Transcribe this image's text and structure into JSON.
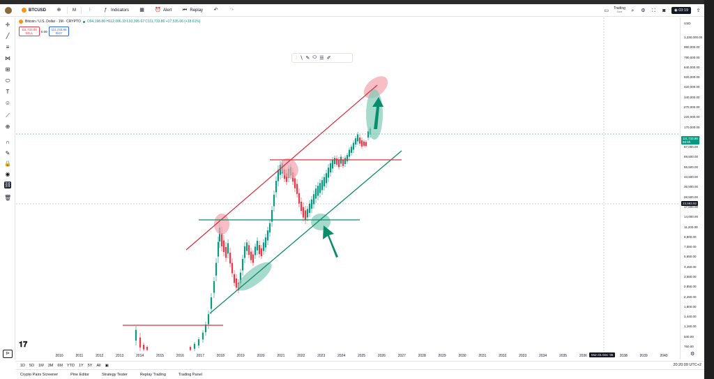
{
  "topbar": {
    "symbol": "BTCUSD",
    "interval": "M",
    "indicators": "Indicators",
    "alert": "Alert",
    "replay": "Replay",
    "trading": "Trading",
    "trading_sub": "Save",
    "time": "03:19"
  },
  "legend": {
    "title": "Bitcoin / U.S. Dollar · 1M · CRYPTO",
    "ohlc": "O94,198.80 H112,006.33 L93,395.67 C111,733.86 +17,535.06 (+18.61%)"
  },
  "trade": {
    "sell_price": "111,733.86",
    "sell_label": "SELL",
    "spread": "0.00",
    "buy_price": "111,733.86",
    "buy_label": "BUY"
  },
  "yaxis": {
    "currency": "USD",
    "ticks": [
      "1,230,000.00",
      "990,000.00",
      "790,000.00",
      "640,000.00",
      "520,000.00",
      "420,000.00",
      "340,000.00",
      "270,000.00",
      "220,000.00",
      "170,000.00",
      "135,000.00",
      "87,000.00",
      "69,500.00",
      "55,500.00",
      "43,500.00",
      "35,500.00",
      "28,500.00",
      "17,500.00",
      "14,000.00",
      "11,200.00",
      "8,800.00",
      "7,050.00",
      "5,650.00",
      "4,450.00",
      "3,550.00",
      "2,850.00",
      "2,250.00",
      "1,800.00",
      "1,440.00",
      "1,160.00",
      "940.00",
      "760.00"
    ],
    "current_price": "111,733.86",
    "current_countdown": "9d 6h",
    "crosshair_price": "23,593.92"
  },
  "xaxis": {
    "years": [
      "2010",
      "2011",
      "2012",
      "2013",
      "2014",
      "2015",
      "2016",
      "2017",
      "2018",
      "2019",
      "2020",
      "2021",
      "2022",
      "2023",
      "2024",
      "2025",
      "2026",
      "2027",
      "2028",
      "2029",
      "2030",
      "2031",
      "2032",
      "2033",
      "2034",
      "2035",
      "2036",
      "2037",
      "2038",
      "2039",
      "2040"
    ],
    "cursor_label": "Mon 01 Dec '36"
  },
  "timeframes": [
    "1D",
    "5D",
    "1M",
    "3M",
    "6M",
    "YTD",
    "1Y",
    "5Y",
    "All"
  ],
  "timezone": "20:20:09 UTC+2",
  "panels": [
    "Crypto Pairs Screener",
    "Pine Editor",
    "Strategy Tester",
    "Replay Trading",
    "Trading Panel"
  ],
  "colors": {
    "up": "#089981",
    "down": "#f23645",
    "resistance_line": "#d9303f",
    "support_line": "#0b8c6b",
    "pink_zone": "#f4a3ad",
    "teal_zone": "#7fcbb6",
    "last_price": "#089981"
  }
}
